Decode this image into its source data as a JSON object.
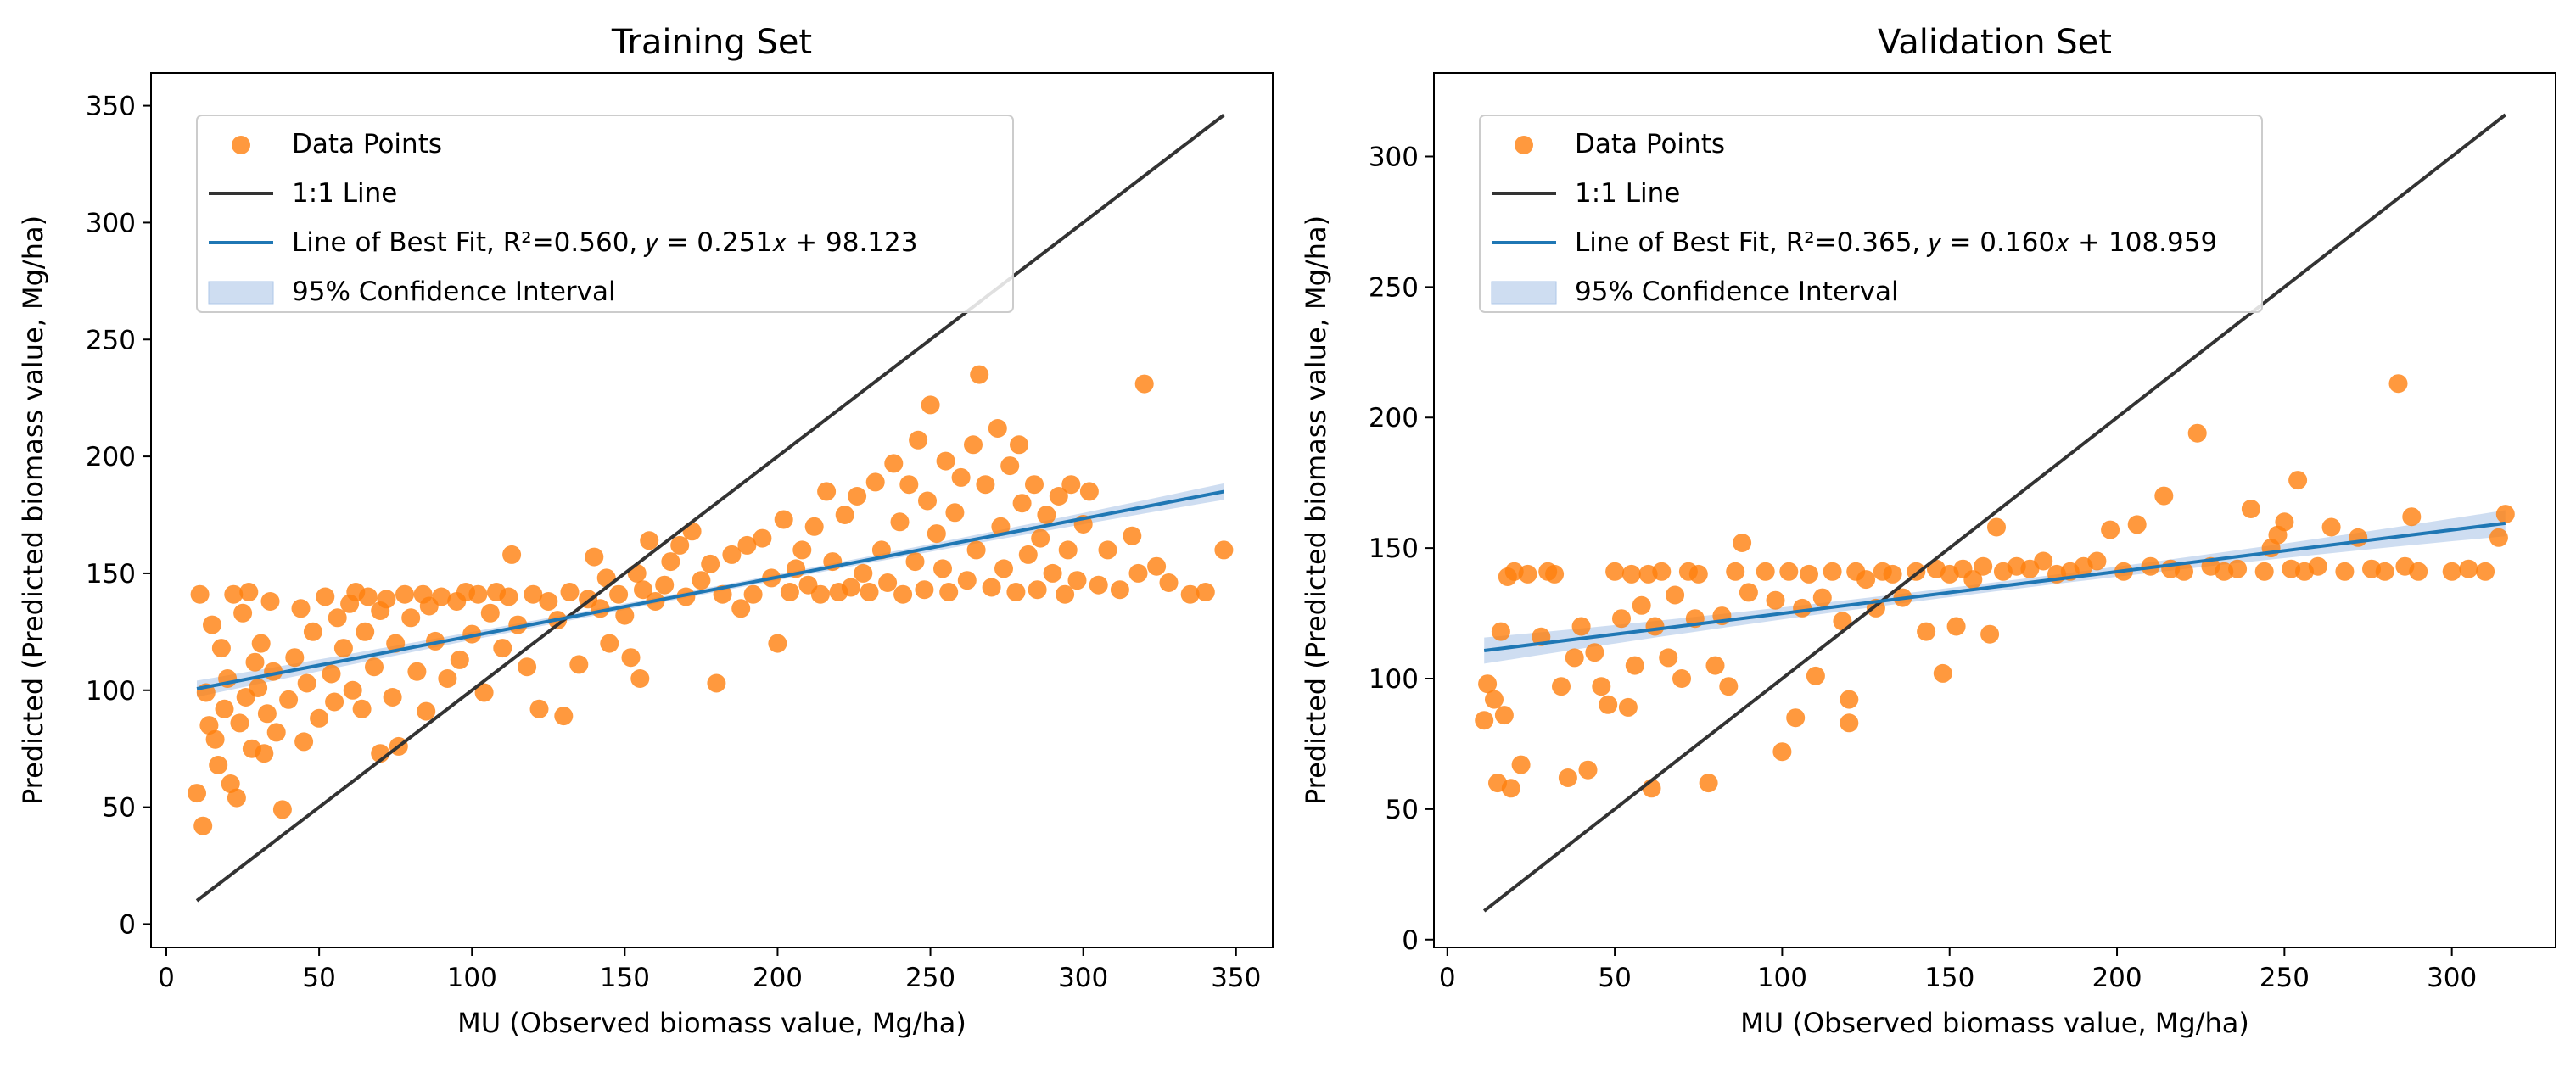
{
  "chart_data": [
    {
      "type": "scatter",
      "title": "Training Set",
      "xlabel": "MU (Observed biomass value, Mg/ha)",
      "ylabel": "Predicted (Predicted biomass value, Mg/ha)",
      "xlim": [
        -5,
        362
      ],
      "ylim": [
        -10,
        364
      ],
      "xticks": [
        0,
        50,
        100,
        150,
        200,
        250,
        300,
        350
      ],
      "yticks": [
        0,
        50,
        100,
        150,
        200,
        250,
        300,
        350
      ],
      "grid": false,
      "legend_position": "upper-left",
      "legend": {
        "points": "Data Points",
        "identity": "1:1 Line",
        "fit": "Line of Best Fit, R²=0.560, 𝑦 = 0.251𝑥 + 98.123",
        "ci": "95% Confidence Interval"
      },
      "identity_line": [
        10,
        346
      ],
      "fit": {
        "slope": 0.251,
        "intercept": 98.123,
        "r2": 0.56,
        "x_range": [
          10,
          346
        ],
        "ci_halfwidth_at_ends": 3.5
      },
      "colors": {
        "points": "#ff7f0e",
        "identity": "#333333",
        "fit": "#1f77b4",
        "ci": "#aec7e8"
      },
      "points": [
        [
          10,
          56
        ],
        [
          12,
          42
        ],
        [
          11,
          141
        ],
        [
          13,
          99
        ],
        [
          14,
          85
        ],
        [
          15,
          128
        ],
        [
          16,
          79
        ],
        [
          17,
          68
        ],
        [
          18,
          118
        ],
        [
          19,
          92
        ],
        [
          20,
          105
        ],
        [
          21,
          60
        ],
        [
          22,
          141
        ],
        [
          23,
          54
        ],
        [
          24,
          86
        ],
        [
          25,
          133
        ],
        [
          26,
          97
        ],
        [
          27,
          142
        ],
        [
          28,
          75
        ],
        [
          29,
          112
        ],
        [
          30,
          101
        ],
        [
          31,
          120
        ],
        [
          32,
          73
        ],
        [
          33,
          90
        ],
        [
          34,
          138
        ],
        [
          35,
          108
        ],
        [
          36,
          82
        ],
        [
          38,
          49
        ],
        [
          40,
          96
        ],
        [
          42,
          114
        ],
        [
          44,
          135
        ],
        [
          45,
          78
        ],
        [
          46,
          103
        ],
        [
          48,
          125
        ],
        [
          50,
          88
        ],
        [
          52,
          140
        ],
        [
          54,
          107
        ],
        [
          55,
          95
        ],
        [
          56,
          131
        ],
        [
          58,
          118
        ],
        [
          60,
          137
        ],
        [
          61,
          100
        ],
        [
          62,
          142
        ],
        [
          64,
          92
        ],
        [
          65,
          125
        ],
        [
          66,
          140
        ],
        [
          68,
          110
        ],
        [
          70,
          73
        ],
        [
          70,
          134
        ],
        [
          72,
          139
        ],
        [
          74,
          97
        ],
        [
          75,
          120
        ],
        [
          76,
          76
        ],
        [
          78,
          141
        ],
        [
          80,
          131
        ],
        [
          82,
          108
        ],
        [
          84,
          141
        ],
        [
          85,
          91
        ],
        [
          86,
          136
        ],
        [
          88,
          121
        ],
        [
          90,
          140
        ],
        [
          92,
          105
        ],
        [
          95,
          138
        ],
        [
          96,
          113
        ],
        [
          98,
          142
        ],
        [
          100,
          124
        ],
        [
          102,
          141
        ],
        [
          104,
          99
        ],
        [
          106,
          133
        ],
        [
          108,
          142
        ],
        [
          110,
          118
        ],
        [
          112,
          140
        ],
        [
          113,
          158
        ],
        [
          115,
          128
        ],
        [
          118,
          110
        ],
        [
          120,
          141
        ],
        [
          122,
          92
        ],
        [
          125,
          138
        ],
        [
          128,
          130
        ],
        [
          130,
          89
        ],
        [
          132,
          142
        ],
        [
          135,
          111
        ],
        [
          138,
          139
        ],
        [
          140,
          157
        ],
        [
          142,
          135
        ],
        [
          144,
          148
        ],
        [
          145,
          120
        ],
        [
          148,
          141
        ],
        [
          150,
          132
        ],
        [
          152,
          114
        ],
        [
          154,
          150
        ],
        [
          155,
          105
        ],
        [
          156,
          143
        ],
        [
          158,
          164
        ],
        [
          160,
          138
        ],
        [
          163,
          145
        ],
        [
          165,
          155
        ],
        [
          168,
          162
        ],
        [
          170,
          140
        ],
        [
          172,
          168
        ],
        [
          175,
          147
        ],
        [
          178,
          154
        ],
        [
          180,
          103
        ],
        [
          182,
          141
        ],
        [
          185,
          158
        ],
        [
          188,
          135
        ],
        [
          190,
          162
        ],
        [
          192,
          141
        ],
        [
          195,
          165
        ],
        [
          198,
          148
        ],
        [
          200,
          120
        ],
        [
          202,
          173
        ],
        [
          204,
          142
        ],
        [
          206,
          152
        ],
        [
          208,
          160
        ],
        [
          210,
          145
        ],
        [
          212,
          170
        ],
        [
          214,
          141
        ],
        [
          216,
          185
        ],
        [
          218,
          155
        ],
        [
          220,
          142
        ],
        [
          222,
          175
        ],
        [
          224,
          144
        ],
        [
          226,
          183
        ],
        [
          228,
          150
        ],
        [
          230,
          142
        ],
        [
          232,
          189
        ],
        [
          234,
          160
        ],
        [
          236,
          146
        ],
        [
          238,
          197
        ],
        [
          240,
          172
        ],
        [
          241,
          141
        ],
        [
          243,
          188
        ],
        [
          245,
          155
        ],
        [
          246,
          207
        ],
        [
          248,
          143
        ],
        [
          249,
          181
        ],
        [
          250,
          222
        ],
        [
          252,
          167
        ],
        [
          254,
          152
        ],
        [
          255,
          198
        ],
        [
          256,
          142
        ],
        [
          258,
          176
        ],
        [
          260,
          191
        ],
        [
          262,
          147
        ],
        [
          264,
          205
        ],
        [
          265,
          160
        ],
        [
          266,
          235
        ],
        [
          268,
          188
        ],
        [
          270,
          144
        ],
        [
          272,
          212
        ],
        [
          273,
          170
        ],
        [
          274,
          152
        ],
        [
          276,
          196
        ],
        [
          278,
          142
        ],
        [
          279,
          205
        ],
        [
          280,
          180
        ],
        [
          282,
          158
        ],
        [
          284,
          188
        ],
        [
          285,
          143
        ],
        [
          286,
          165
        ],
        [
          288,
          175
        ],
        [
          290,
          150
        ],
        [
          292,
          183
        ],
        [
          294,
          141
        ],
        [
          295,
          160
        ],
        [
          296,
          188
        ],
        [
          298,
          147
        ],
        [
          300,
          171
        ],
        [
          302,
          185
        ],
        [
          305,
          145
        ],
        [
          308,
          160
        ],
        [
          312,
          143
        ],
        [
          316,
          166
        ],
        [
          318,
          150
        ],
        [
          320,
          231
        ],
        [
          324,
          153
        ],
        [
          328,
          146
        ],
        [
          335,
          141
        ],
        [
          340,
          142
        ],
        [
          346,
          160
        ]
      ]
    },
    {
      "type": "scatter",
      "title": "Validation Set",
      "xlabel": "MU (Observed biomass value, Mg/ha)",
      "ylabel": "Predicted (Predicted biomass value, Mg/ha)",
      "xlim": [
        -4,
        331
      ],
      "ylim": [
        -3,
        332
      ],
      "xticks": [
        0,
        50,
        100,
        150,
        200,
        250,
        300
      ],
      "yticks": [
        0,
        50,
        100,
        150,
        200,
        250,
        300
      ],
      "grid": false,
      "legend_position": "upper-left",
      "legend": {
        "points": "Data Points",
        "identity": "1:1 Line",
        "fit": "Line of Best Fit, R²=0.365, 𝑦 = 0.160𝑥 + 108.959",
        "ci": "95% Confidence Interval"
      },
      "identity_line": [
        11,
        316
      ],
      "fit": {
        "slope": 0.16,
        "intercept": 108.959,
        "r2": 0.365,
        "x_range": [
          11,
          316
        ],
        "ci_halfwidth_at_ends": 5
      },
      "colors": {
        "points": "#ff7f0e",
        "identity": "#333333",
        "fit": "#1f77b4",
        "ci": "#aec7e8"
      },
      "points": [
        [
          11,
          84
        ],
        [
          12,
          98
        ],
        [
          14,
          92
        ],
        [
          15,
          60
        ],
        [
          16,
          118
        ],
        [
          17,
          86
        ],
        [
          18,
          139
        ],
        [
          19,
          58
        ],
        [
          20,
          141
        ],
        [
          22,
          67
        ],
        [
          24,
          140
        ],
        [
          28,
          116
        ],
        [
          30,
          141
        ],
        [
          32,
          140
        ],
        [
          34,
          97
        ],
        [
          36,
          62
        ],
        [
          38,
          108
        ],
        [
          40,
          120
        ],
        [
          42,
          65
        ],
        [
          44,
          110
        ],
        [
          46,
          97
        ],
        [
          48,
          90
        ],
        [
          50,
          141
        ],
        [
          52,
          123
        ],
        [
          54,
          89
        ],
        [
          55,
          140
        ],
        [
          56,
          105
        ],
        [
          58,
          128
        ],
        [
          60,
          140
        ],
        [
          61,
          58
        ],
        [
          62,
          120
        ],
        [
          64,
          141
        ],
        [
          66,
          108
        ],
        [
          68,
          132
        ],
        [
          70,
          100
        ],
        [
          72,
          141
        ],
        [
          74,
          123
        ],
        [
          75,
          140
        ],
        [
          78,
          60
        ],
        [
          80,
          105
        ],
        [
          82,
          124
        ],
        [
          84,
          97
        ],
        [
          86,
          141
        ],
        [
          88,
          152
        ],
        [
          90,
          133
        ],
        [
          95,
          141
        ],
        [
          98,
          130
        ],
        [
          100,
          72
        ],
        [
          102,
          141
        ],
        [
          104,
          85
        ],
        [
          106,
          127
        ],
        [
          108,
          140
        ],
        [
          110,
          101
        ],
        [
          112,
          131
        ],
        [
          115,
          141
        ],
        [
          118,
          122
        ],
        [
          120,
          92
        ],
        [
          120,
          83
        ],
        [
          122,
          141
        ],
        [
          125,
          138
        ],
        [
          128,
          127
        ],
        [
          130,
          141
        ],
        [
          133,
          140
        ],
        [
          136,
          131
        ],
        [
          140,
          141
        ],
        [
          143,
          118
        ],
        [
          146,
          142
        ],
        [
          148,
          102
        ],
        [
          150,
          140
        ],
        [
          152,
          120
        ],
        [
          154,
          142
        ],
        [
          157,
          138
        ],
        [
          160,
          143
        ],
        [
          162,
          117
        ],
        [
          164,
          158
        ],
        [
          166,
          141
        ],
        [
          170,
          143
        ],
        [
          174,
          142
        ],
        [
          178,
          145
        ],
        [
          182,
          140
        ],
        [
          186,
          141
        ],
        [
          190,
          143
        ],
        [
          194,
          145
        ],
        [
          198,
          157
        ],
        [
          202,
          141
        ],
        [
          206,
          159
        ],
        [
          210,
          143
        ],
        [
          214,
          170
        ],
        [
          216,
          142
        ],
        [
          220,
          141
        ],
        [
          224,
          194
        ],
        [
          228,
          143
        ],
        [
          232,
          141
        ],
        [
          236,
          142
        ],
        [
          240,
          165
        ],
        [
          244,
          141
        ],
        [
          246,
          150
        ],
        [
          248,
          155
        ],
        [
          250,
          160
        ],
        [
          252,
          142
        ],
        [
          254,
          176
        ],
        [
          256,
          141
        ],
        [
          260,
          143
        ],
        [
          264,
          158
        ],
        [
          268,
          141
        ],
        [
          272,
          154
        ],
        [
          276,
          142
        ],
        [
          280,
          141
        ],
        [
          284,
          213
        ],
        [
          286,
          143
        ],
        [
          288,
          162
        ],
        [
          290,
          141
        ],
        [
          300,
          141
        ],
        [
          305,
          142
        ],
        [
          310,
          141
        ],
        [
          314,
          154
        ],
        [
          316,
          163
        ]
      ]
    }
  ]
}
